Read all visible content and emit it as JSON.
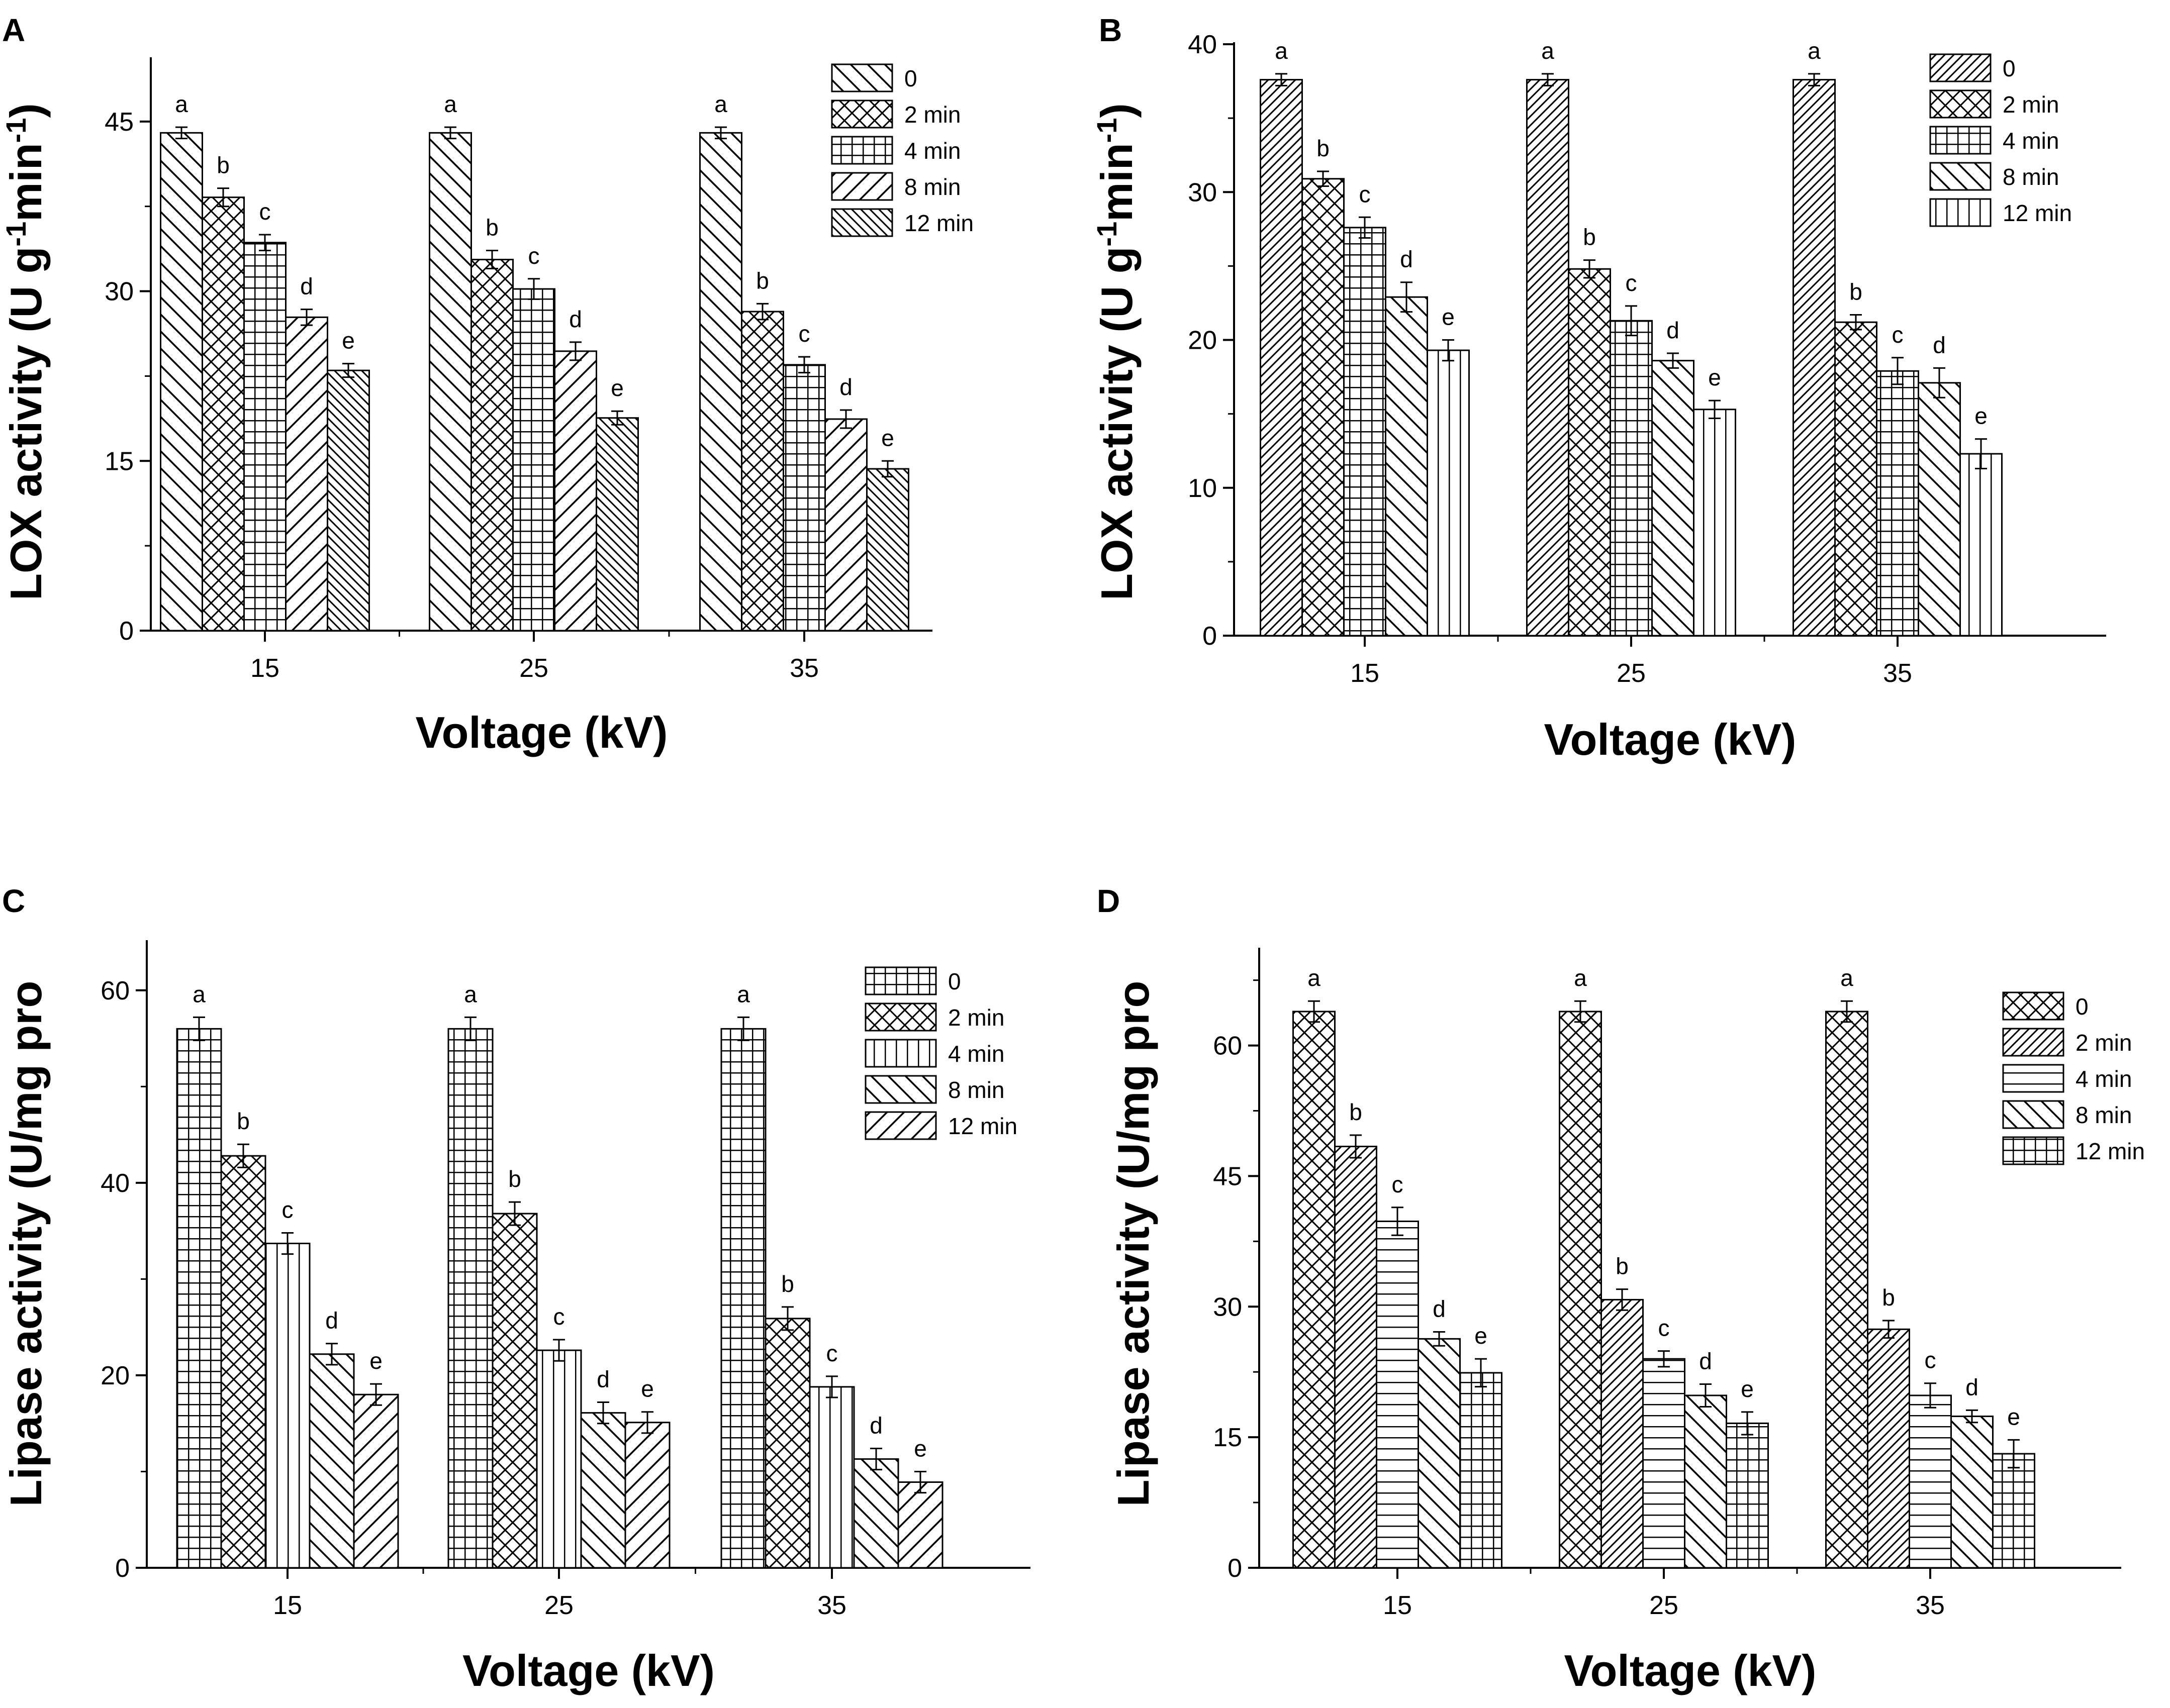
{
  "figure": {
    "panels": [
      "A",
      "B",
      "C",
      "D"
    ]
  },
  "chart_data": [
    {
      "panel": "A",
      "type": "bar",
      "xlabel": "Voltage (kV)",
      "ylabel_main": "LOX activity (U g",
      "ylabel_sup1": "-1",
      "ylabel_mid": "min",
      "ylabel_sup2": "-1",
      "ylabel_end": ")",
      "ylim": [
        0,
        50.5
      ],
      "yticks": [
        0,
        15,
        30,
        45
      ],
      "categories": [
        "15",
        "25",
        "35"
      ],
      "series": [
        {
          "name": "0",
          "pattern": "diagR",
          "values": [
            44.0,
            44.0,
            44.0
          ],
          "errors": [
            0.5,
            0.5,
            0.5
          ],
          "letters": [
            "a",
            "a",
            "a"
          ]
        },
        {
          "name": "2 min",
          "pattern": "cross",
          "values": [
            38.3,
            32.8,
            28.2
          ],
          "errors": [
            0.8,
            0.8,
            0.7
          ],
          "letters": [
            "b",
            "b",
            "b"
          ]
        },
        {
          "name": "4 min",
          "pattern": "grid",
          "values": [
            34.3,
            30.2,
            23.5
          ],
          "errors": [
            0.7,
            0.9,
            0.7
          ],
          "letters": [
            "c",
            "c",
            "c"
          ]
        },
        {
          "name": "8 min",
          "pattern": "diagL",
          "values": [
            27.7,
            24.7,
            18.7
          ],
          "errors": [
            0.7,
            0.8,
            0.8
          ],
          "letters": [
            "d",
            "d",
            "d"
          ]
        },
        {
          "name": "12 min",
          "pattern": "diagRdense",
          "values": [
            23.0,
            18.8,
            14.3
          ],
          "errors": [
            0.6,
            0.6,
            0.7
          ],
          "letters": [
            "e",
            "e",
            "e"
          ]
        }
      ]
    },
    {
      "panel": "B",
      "type": "bar",
      "xlabel": "Voltage (kV)",
      "ylabel_main": "LOX activity (U g",
      "ylabel_sup1": "-1",
      "ylabel_mid": "min",
      "ylabel_sup2": "-1",
      "ylabel_end": ")",
      "ylim": [
        0,
        40
      ],
      "yticks": [
        0,
        10,
        20,
        30,
        40
      ],
      "categories": [
        "15",
        "25",
        "35"
      ],
      "series": [
        {
          "name": "0",
          "pattern": "diagLdense",
          "values": [
            37.6,
            37.6,
            37.6
          ],
          "errors": [
            0.4,
            0.4,
            0.4
          ],
          "letters": [
            "a",
            "a",
            "a"
          ]
        },
        {
          "name": "2 min",
          "pattern": "cross",
          "values": [
            30.9,
            24.8,
            21.2
          ],
          "errors": [
            0.5,
            0.6,
            0.5
          ],
          "letters": [
            "b",
            "b",
            "b"
          ]
        },
        {
          "name": "4 min",
          "pattern": "grid",
          "values": [
            27.6,
            21.3,
            17.9
          ],
          "errors": [
            0.7,
            1.0,
            0.9
          ],
          "letters": [
            "c",
            "c",
            "c"
          ]
        },
        {
          "name": "8 min",
          "pattern": "diagR",
          "values": [
            22.9,
            18.6,
            17.1
          ],
          "errors": [
            1.0,
            0.5,
            1.0
          ],
          "letters": [
            "d",
            "d",
            "d"
          ]
        },
        {
          "name": "12 min",
          "pattern": "vert",
          "values": [
            19.3,
            15.3,
            12.3
          ],
          "errors": [
            0.7,
            0.6,
            1.0
          ],
          "letters": [
            "e",
            "e",
            "e"
          ]
        }
      ]
    },
    {
      "panel": "C",
      "type": "bar",
      "xlabel": "Voltage (kV)",
      "ylabel_main": "Lipase activity (U/mg pro",
      "ylim": [
        0,
        65
      ],
      "yticks": [
        0,
        20,
        40,
        60
      ],
      "categories": [
        "15",
        "25",
        "35"
      ],
      "series": [
        {
          "name": "0",
          "pattern": "grid",
          "values": [
            56.0,
            56.0,
            56.0
          ],
          "errors": [
            1.2,
            1.2,
            1.2
          ],
          "letters": [
            "a",
            "a",
            "a"
          ]
        },
        {
          "name": "2 min",
          "pattern": "cross",
          "values": [
            42.8,
            36.8,
            25.9
          ],
          "errors": [
            1.2,
            1.2,
            1.2
          ],
          "letters": [
            "b",
            "b",
            "b"
          ]
        },
        {
          "name": "4 min",
          "pattern": "vert",
          "values": [
            33.7,
            22.6,
            18.8
          ],
          "errors": [
            1.1,
            1.1,
            1.1
          ],
          "letters": [
            "c",
            "c",
            "c"
          ]
        },
        {
          "name": "8 min",
          "pattern": "diagR",
          "values": [
            22.2,
            16.1,
            11.3
          ],
          "errors": [
            1.1,
            1.1,
            1.1
          ],
          "letters": [
            "d",
            "d",
            "d"
          ]
        },
        {
          "name": "12 min",
          "pattern": "diagL",
          "values": [
            18.0,
            15.1,
            8.9
          ],
          "errors": [
            1.1,
            1.1,
            1.1
          ],
          "letters": [
            "e",
            "e",
            "e"
          ]
        }
      ]
    },
    {
      "panel": "D",
      "type": "bar",
      "xlabel": "Voltage (kV)",
      "ylabel_main": "Lipase activity (U/mg pro",
      "ylim": [
        0,
        71
      ],
      "yticks": [
        0,
        15,
        30,
        45,
        60
      ],
      "categories": [
        "15",
        "25",
        "35"
      ],
      "series": [
        {
          "name": "0",
          "pattern": "cross",
          "values": [
            63.9,
            63.9,
            63.9
          ],
          "errors": [
            1.2,
            1.2,
            1.2
          ],
          "letters": [
            "a",
            "a",
            "a"
          ]
        },
        {
          "name": "2 min",
          "pattern": "diagLdense",
          "values": [
            48.4,
            30.8,
            27.4
          ],
          "errors": [
            1.3,
            1.2,
            1.0
          ],
          "letters": [
            "b",
            "b",
            "b"
          ]
        },
        {
          "name": "4 min",
          "pattern": "horiz",
          "values": [
            39.8,
            24.0,
            19.8
          ],
          "errors": [
            1.6,
            0.9,
            1.4
          ],
          "letters": [
            "c",
            "c",
            "c"
          ]
        },
        {
          "name": "8 min",
          "pattern": "diagR",
          "values": [
            26.3,
            19.8,
            17.4
          ],
          "errors": [
            0.8,
            1.3,
            0.7
          ],
          "letters": [
            "d",
            "d",
            "d"
          ]
        },
        {
          "name": "12 min",
          "pattern": "grid",
          "values": [
            22.4,
            16.6,
            13.1
          ],
          "errors": [
            1.6,
            1.3,
            1.6
          ],
          "letters": [
            "e",
            "e",
            "e"
          ]
        }
      ]
    }
  ]
}
